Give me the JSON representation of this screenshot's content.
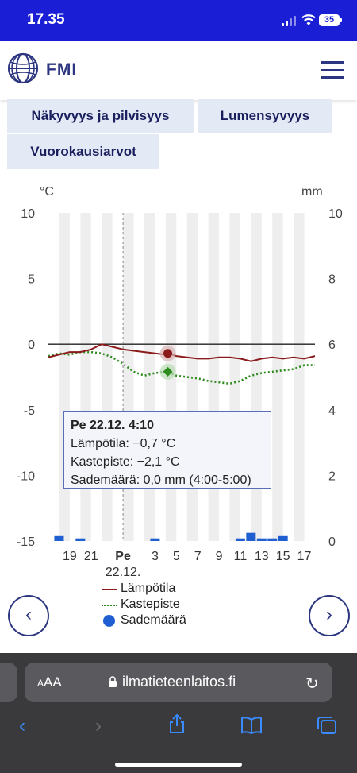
{
  "status": {
    "time": "17.35",
    "battery": "35"
  },
  "header": {
    "brand": "FMI"
  },
  "tabs": [
    {
      "label": "Näkyvyys ja pilvisyys"
    },
    {
      "label": "Lumensyvyys"
    },
    {
      "label": "Vuorokausiarvot"
    }
  ],
  "chart_data": {
    "type": "line",
    "left_unit": "°C",
    "right_unit": "mm",
    "left_ticks": [
      "10",
      "5",
      "0",
      "-5",
      "-10",
      "-15"
    ],
    "right_ticks": [
      "10",
      "8",
      "6",
      "4",
      "2",
      "0"
    ],
    "left_ylim": [
      -15,
      10
    ],
    "right_ylim": [
      0,
      10
    ],
    "x_tick_hours": [
      19,
      21,
      24,
      27,
      29,
      31,
      33,
      35,
      37,
      39,
      41
    ],
    "x_tick_labels": [
      "19",
      "21",
      "Pe",
      "3",
      "5",
      "7",
      "9",
      "11",
      "13",
      "15",
      "17"
    ],
    "x_date_label": "22.12.",
    "xlim": [
      17,
      42
    ],
    "series": [
      {
        "name": "Lämpötila",
        "color": "#8b1a1a",
        "style": "solid",
        "x": [
          17,
          18,
          19,
          20,
          21,
          22,
          23,
          24,
          25,
          26,
          27,
          28,
          28.2,
          29,
          30,
          31,
          32,
          33,
          34,
          35,
          36,
          37,
          38,
          39,
          40,
          41,
          42
        ],
        "values": [
          -1.0,
          -0.8,
          -0.6,
          -0.6,
          -0.4,
          0.0,
          -0.2,
          -0.4,
          -0.5,
          -0.6,
          -0.7,
          -0.8,
          -0.7,
          -0.9,
          -1.0,
          -1.1,
          -1.1,
          -1.0,
          -1.0,
          -1.1,
          -1.3,
          -1.1,
          -1.0,
          -1.1,
          -1.0,
          -1.1,
          -0.9
        ]
      },
      {
        "name": "Kastepiste",
        "color": "#2e8b1e",
        "style": "dotted",
        "x": [
          17,
          18,
          19,
          20,
          21,
          22,
          23,
          24,
          25,
          26,
          27,
          28,
          28.2,
          29,
          30,
          31,
          32,
          33,
          34,
          35,
          36,
          37,
          38,
          39,
          40,
          41,
          42
        ],
        "values": [
          -0.9,
          -0.7,
          -0.8,
          -0.6,
          -0.6,
          -0.7,
          -1.0,
          -1.5,
          -2.1,
          -2.4,
          -2.2,
          -2.1,
          -2.1,
          -2.4,
          -2.5,
          -2.6,
          -2.8,
          -2.9,
          -3.0,
          -2.8,
          -2.4,
          -2.2,
          -2.1,
          -2.0,
          -1.9,
          -1.6,
          -1.6
        ]
      },
      {
        "name": "Sademäärä",
        "color": "#1f5fd1",
        "style": "bar",
        "x": [
          18,
          20,
          27,
          35,
          36,
          37,
          38,
          39
        ],
        "values": [
          0.15,
          0.08,
          0.08,
          0.08,
          0.25,
          0.08,
          0.08,
          0.15
        ]
      }
    ],
    "highlight": {
      "x": 28.2,
      "temp": -0.7,
      "dew": -2.1,
      "title": "Pe 22.12. 4:10",
      "lines": [
        "Lämpötila: −0,7 °C",
        "Kastepiste: −2,1 °C",
        "Sademäärä: 0,0 mm (4:00-5:00)"
      ]
    },
    "midnight_x": 24
  },
  "browser": {
    "url": "ilmatieteenlaitos.fi",
    "aa": "AA"
  }
}
